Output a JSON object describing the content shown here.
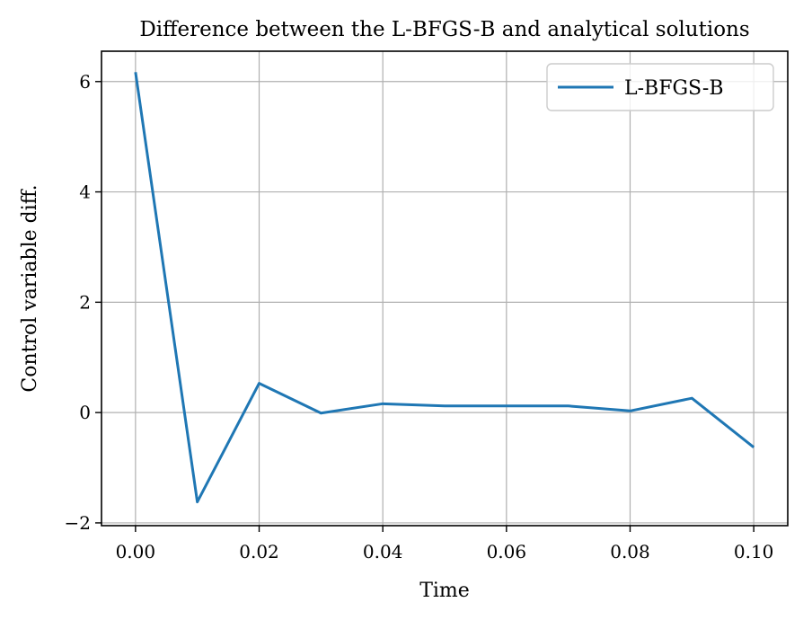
{
  "chart_data": {
    "type": "line",
    "title": "Difference between the L-BFGS-B and analytical solutions",
    "xlabel": "Time",
    "ylabel": "Control variable diff.",
    "xlim": [
      -0.0055,
      0.1055
    ],
    "ylim": [
      -2.05,
      6.55
    ],
    "xticks": [
      0.0,
      0.02,
      0.04,
      0.06,
      0.08,
      0.1
    ],
    "xtick_labels": [
      "0.00",
      "0.02",
      "0.04",
      "0.06",
      "0.08",
      "0.10"
    ],
    "yticks": [
      -2,
      0,
      2,
      4,
      6
    ],
    "ytick_labels": [
      "−2",
      "0",
      "2",
      "4",
      "6"
    ],
    "grid": true,
    "legend_position": "top-right",
    "series": [
      {
        "name": "L-BFGS-B",
        "color": "#1f77b4",
        "x": [
          0.0,
          0.01,
          0.02,
          0.03,
          0.04,
          0.05,
          0.06,
          0.07,
          0.08,
          0.09,
          0.1
        ],
        "y": [
          6.17,
          -1.62,
          0.53,
          -0.01,
          0.16,
          0.12,
          0.12,
          0.12,
          0.03,
          0.26,
          -0.63
        ]
      }
    ]
  }
}
